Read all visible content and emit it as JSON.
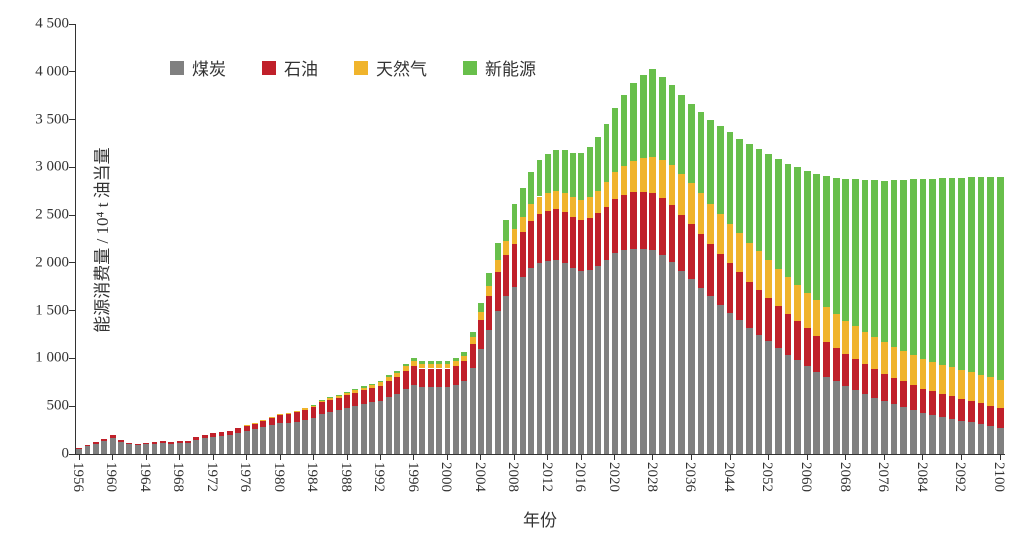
{
  "chart": {
    "type": "stacked-bar",
    "xlabel": "年份",
    "ylabel": "能源消费量 / 10⁴ t 油当量",
    "label_fontsize": 17,
    "tick_fontsize": 15,
    "legend_fontsize": 17,
    "ylim": [
      0,
      4500
    ],
    "ytick_step": 500,
    "yticks": [
      0,
      500,
      1000,
      1500,
      2000,
      2500,
      3000,
      3500,
      4000,
      4500
    ],
    "ytick_labels": [
      "0",
      "500",
      "1 000",
      "1 500",
      "2 000",
      "2 500",
      "3 000",
      "3 500",
      "4 000",
      "4 500"
    ],
    "xtick_years": [
      1956,
      1960,
      1964,
      1968,
      1972,
      1976,
      1980,
      1984,
      1988,
      1992,
      1996,
      2000,
      2004,
      2008,
      2012,
      2016,
      2020,
      2028,
      2036,
      2044,
      2052,
      2060,
      2068,
      2076,
      2084,
      2092,
      2100
    ],
    "bar_gap_ratio": 0.3,
    "background_color": "#ffffff",
    "axis_color": "#333333",
    "series": [
      {
        "key": "coal",
        "label": "煤炭",
        "color": "#808080"
      },
      {
        "key": "oil",
        "label": "石油",
        "color": "#c0202a"
      },
      {
        "key": "gas",
        "label": "天然气",
        "color": "#f0b42c"
      },
      {
        "key": "renew",
        "label": "新能源",
        "color": "#68bf4b"
      }
    ],
    "years": [
      1956,
      1957,
      1958,
      1959,
      1960,
      1961,
      1962,
      1963,
      1964,
      1965,
      1966,
      1967,
      1968,
      1969,
      1970,
      1971,
      1972,
      1973,
      1974,
      1975,
      1976,
      1977,
      1978,
      1979,
      1980,
      1981,
      1982,
      1983,
      1984,
      1985,
      1986,
      1987,
      1988,
      1989,
      1990,
      1991,
      1992,
      1993,
      1994,
      1995,
      1996,
      1997,
      1998,
      1999,
      2000,
      2001,
      2002,
      2003,
      2004,
      2005,
      2006,
      2007,
      2008,
      2009,
      2010,
      2011,
      2012,
      2013,
      2014,
      2015,
      2016,
      2017,
      2018,
      2019,
      2020,
      2022,
      2024,
      2026,
      2028,
      2030,
      2032,
      2034,
      2036,
      2038,
      2040,
      2042,
      2044,
      2046,
      2048,
      2050,
      2052,
      2054,
      2056,
      2058,
      2060,
      2062,
      2064,
      2066,
      2068,
      2070,
      2072,
      2074,
      2076,
      2078,
      2080,
      2082,
      2084,
      2086,
      2088,
      2090,
      2092,
      2094,
      2096,
      2098,
      2100
    ],
    "data": {
      "coal": [
        60,
        80,
        110,
        140,
        170,
        130,
        100,
        90,
        100,
        110,
        120,
        110,
        115,
        120,
        150,
        170,
        180,
        190,
        200,
        220,
        240,
        260,
        280,
        300,
        320,
        320,
        340,
        360,
        380,
        420,
        440,
        460,
        480,
        500,
        520,
        540,
        560,
        600,
        630,
        680,
        720,
        700,
        700,
        700,
        700,
        720,
        760,
        900,
        1100,
        1300,
        1500,
        1650,
        1750,
        1850,
        1950,
        2000,
        2020,
        2030,
        2000,
        1950,
        1920,
        1930,
        1970,
        2030,
        2100,
        2130,
        2150,
        2150,
        2130,
        2080,
        2010,
        1920,
        1830,
        1740,
        1650,
        1560,
        1480,
        1400,
        1320,
        1250,
        1180,
        1110,
        1040,
        980,
        920,
        860,
        810,
        760,
        710,
        670,
        630,
        590,
        550,
        520,
        490,
        460,
        430,
        410,
        390,
        370,
        350,
        330,
        310,
        290,
        270
      ],
      "oil": [
        5,
        10,
        15,
        20,
        25,
        20,
        15,
        12,
        14,
        16,
        18,
        17,
        18,
        20,
        25,
        30,
        35,
        40,
        45,
        50,
        55,
        60,
        70,
        80,
        90,
        95,
        100,
        105,
        110,
        120,
        125,
        130,
        135,
        140,
        145,
        150,
        155,
        165,
        175,
        190,
        200,
        195,
        195,
        195,
        195,
        200,
        210,
        250,
        300,
        350,
        400,
        430,
        450,
        470,
        490,
        510,
        520,
        530,
        530,
        530,
        530,
        540,
        550,
        560,
        570,
        580,
        590,
        595,
        600,
        600,
        595,
        585,
        575,
        560,
        545,
        530,
        515,
        500,
        485,
        470,
        455,
        440,
        425,
        410,
        395,
        380,
        365,
        350,
        335,
        320,
        310,
        300,
        290,
        280,
        270,
        260,
        250,
        245,
        240,
        235,
        230,
        225,
        220,
        215,
        210
      ],
      "gas": [
        0,
        0,
        0,
        0,
        0,
        0,
        0,
        0,
        0,
        0,
        0,
        0,
        0,
        0,
        0,
        0,
        0,
        0,
        0,
        0,
        2,
        4,
        6,
        8,
        10,
        12,
        14,
        16,
        18,
        20,
        22,
        24,
        26,
        28,
        30,
        32,
        34,
        38,
        42,
        46,
        50,
        48,
        48,
        48,
        48,
        50,
        55,
        70,
        90,
        110,
        130,
        145,
        155,
        165,
        175,
        185,
        190,
        195,
        200,
        205,
        210,
        220,
        235,
        255,
        280,
        305,
        330,
        355,
        380,
        400,
        415,
        425,
        430,
        430,
        425,
        420,
        415,
        410,
        405,
        400,
        395,
        390,
        385,
        380,
        375,
        370,
        365,
        360,
        350,
        345,
        340,
        335,
        330,
        325,
        320,
        315,
        310,
        308,
        306,
        304,
        302,
        300,
        298,
        296,
        294
      ],
      "renew": [
        0,
        0,
        0,
        0,
        0,
        0,
        0,
        0,
        0,
        0,
        0,
        0,
        0,
        0,
        0,
        0,
        0,
        0,
        0,
        0,
        0,
        0,
        0,
        0,
        0,
        0,
        0,
        0,
        2,
        4,
        6,
        8,
        10,
        12,
        14,
        16,
        18,
        22,
        26,
        30,
        34,
        32,
        32,
        32,
        32,
        35,
        40,
        60,
        90,
        130,
        180,
        220,
        260,
        300,
        340,
        380,
        410,
        430,
        450,
        470,
        490,
        520,
        560,
        610,
        670,
        740,
        810,
        870,
        920,
        870,
        840,
        830,
        830,
        850,
        880,
        920,
        960,
        990,
        1030,
        1070,
        1110,
        1150,
        1190,
        1230,
        1270,
        1320,
        1370,
        1420,
        1480,
        1540,
        1590,
        1640,
        1690,
        1740,
        1790,
        1840,
        1890,
        1920,
        1950,
        1980,
        2010,
        2040,
        2070,
        2100,
        2130
      ]
    }
  }
}
